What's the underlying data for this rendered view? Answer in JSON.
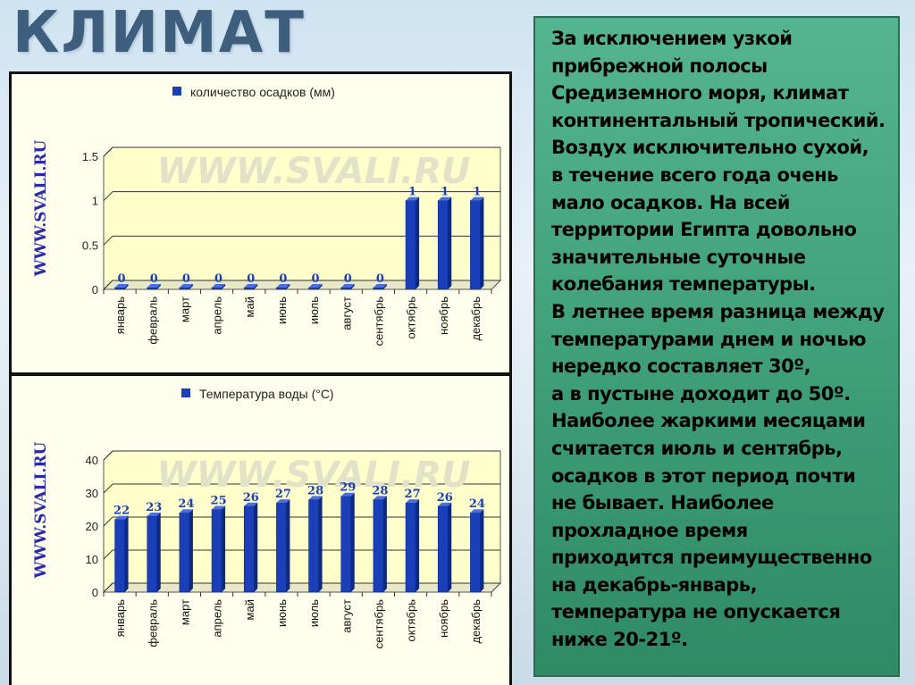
{
  "slide": {
    "title": "КЛИМАТ"
  },
  "watermark": {
    "side": "WWW.SVALI.RU",
    "center": "WWW.SVALI.RU"
  },
  "month_labels": [
    "январь",
    "февраль",
    "март",
    "апрель",
    "май",
    "июнь",
    "июль",
    "август",
    "сентябрь",
    "октябрь",
    "ноябрь",
    "декабрь"
  ],
  "chart_data": [
    {
      "type": "bar",
      "title": "",
      "legend": "количество осадков (мм)",
      "legend_position": "top",
      "xlabel": "",
      "ylabel": "",
      "categories": [
        "январь",
        "февраль",
        "март",
        "апрель",
        "май",
        "июнь",
        "июль",
        "август",
        "сентябрь",
        "октябрь",
        "ноябрь",
        "декабрь"
      ],
      "series": [
        {
          "name": "количество осадков (мм)",
          "values": [
            0,
            0,
            0,
            0,
            0,
            0,
            0,
            0,
            0,
            1,
            1,
            1
          ]
        }
      ],
      "data_labels": [
        "0",
        "0",
        "0",
        "0",
        "0",
        "0",
        "0",
        "0",
        "0",
        "1",
        "1",
        "1"
      ],
      "y_ticks": [
        "0",
        "0.5",
        "1",
        "1.5"
      ],
      "ylim": [
        0,
        1.5
      ],
      "grid": true,
      "bar_color": "#1a3fb8"
    },
    {
      "type": "bar",
      "title": "",
      "legend": "Температура воды (°С)",
      "legend_position": "top",
      "xlabel": "",
      "ylabel": "",
      "categories": [
        "январь",
        "февраль",
        "март",
        "апрель",
        "май",
        "июнь",
        "июль",
        "август",
        "сентябрь",
        "октябрь",
        "ноябрь",
        "декабрь"
      ],
      "series": [
        {
          "name": "Температура воды (°С)",
          "values": [
            22,
            23,
            24,
            25,
            26,
            27,
            28,
            29,
            28,
            27,
            26,
            24
          ]
        }
      ],
      "data_labels": [
        "22",
        "23",
        "24",
        "25",
        "26",
        "27",
        "28",
        "29",
        "28",
        "27",
        "26",
        "24"
      ],
      "y_ticks": [
        "0",
        "10",
        "20",
        "30",
        "40"
      ],
      "ylim": [
        0,
        40
      ],
      "grid": true,
      "bar_color": "#1a3fb8"
    }
  ],
  "text": {
    "lines": [
      "За исключением узкой",
      "прибрежной полосы",
      "Средиземного моря, климат",
      "континентальный тропический.",
      "Воздух исключительно сухой,",
      "в течение всего года очень",
      "мало осадков. На всей",
      "территории Египта довольно",
      "значительные суточные",
      "колебания температуры.",
      "В летнее время разница между",
      "температурами днем и ночью",
      "нередко составляет 30º,",
      "а в пустыне доходит до 50º.",
      "Наиболее жаркими месяцами",
      "считается июль и сентябрь,",
      "осадков в этот период почти",
      "не бывает. Наиболее",
      "прохладное время",
      "приходится преимущественно",
      "на декабрь-январь,",
      "температура не опускается",
      "ниже 20-21º."
    ]
  }
}
